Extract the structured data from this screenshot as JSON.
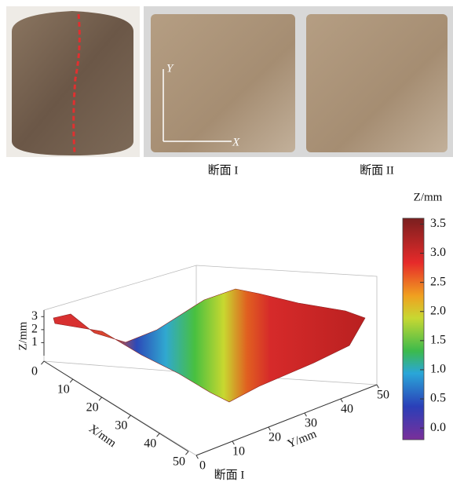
{
  "photos": {
    "captions": [
      "断面 I",
      "断面 II"
    ],
    "axis_labels": {
      "y": "Y",
      "x": "X"
    }
  },
  "surface_plot": {
    "caption": "断面 I",
    "x_label": "X/mm",
    "y_label": "Y/mm",
    "z_label": "Z/mm",
    "xlim": [
      0,
      50
    ],
    "xticks": [
      0,
      10,
      20,
      30,
      40,
      50
    ],
    "ylim": [
      0,
      50
    ],
    "yticks": [
      0,
      10,
      20,
      30,
      40,
      50
    ],
    "zlim": [
      0,
      3.5
    ],
    "zticks": [
      1,
      2,
      3
    ],
    "colorbar": {
      "label": "Z/mm",
      "clim": [
        -0.2,
        3.6
      ],
      "ticks": [
        {
          "value": 0,
          "label": "0.0"
        },
        {
          "value": 0.5,
          "label": "0.5"
        },
        {
          "value": 1,
          "label": "1.0"
        },
        {
          "value": 1.5,
          "label": "1.5"
        },
        {
          "value": 2,
          "label": "2.0"
        },
        {
          "value": 2.5,
          "label": "2.5"
        },
        {
          "value": 3,
          "label": "3.0"
        },
        {
          "value": 3.5,
          "label": "3.5"
        }
      ]
    }
  }
}
